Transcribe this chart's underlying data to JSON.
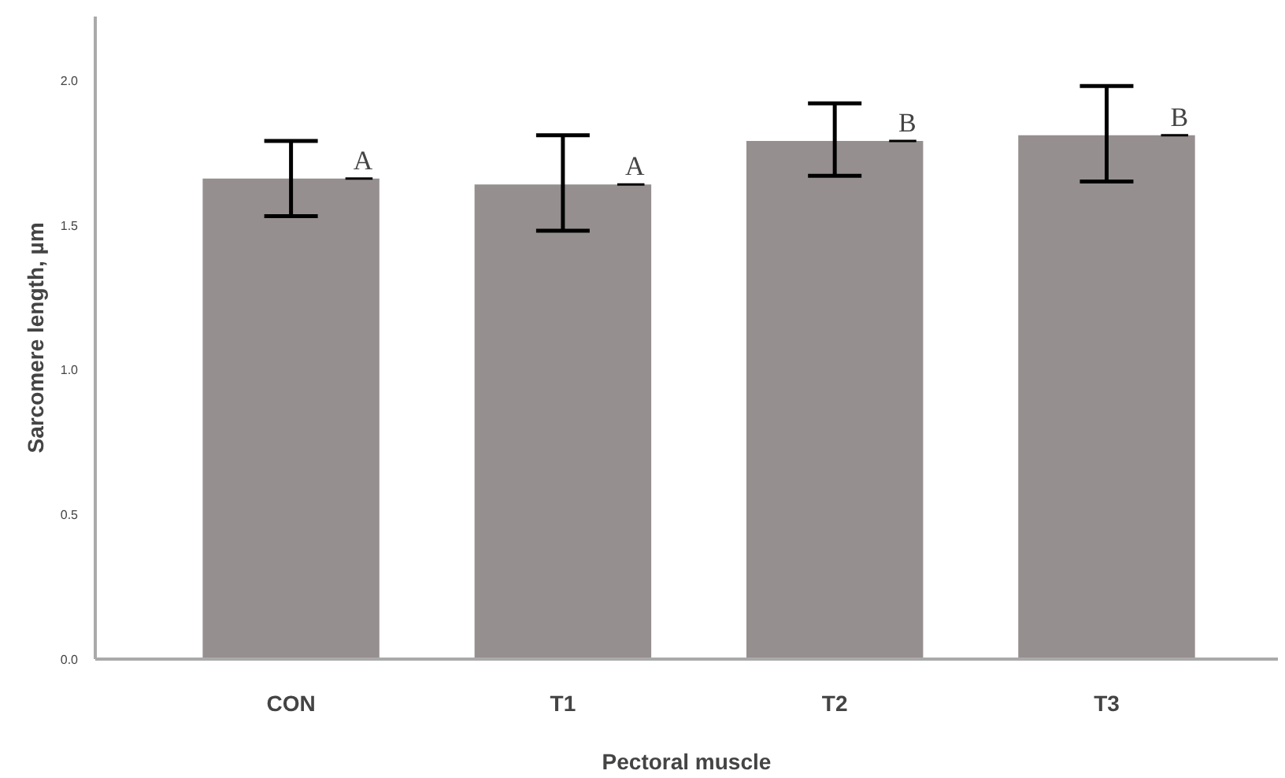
{
  "chart_data": {
    "type": "bar",
    "xlabel": "Pectoral muscle",
    "ylabel": "Sarcomere length, µm",
    "categories": [
      "CON",
      "T1",
      "T2",
      "T3"
    ],
    "values": [
      1.66,
      1.64,
      1.79,
      1.81
    ],
    "errors": [
      [
        1.53,
        1.79
      ],
      [
        1.48,
        1.81
      ],
      [
        1.67,
        1.92
      ],
      [
        1.65,
        1.98
      ]
    ],
    "color": "#968f8f",
    "ylim": [
      0,
      2.22
    ],
    "yticks": [
      {
        "value": 0,
        "label": "0.0"
      },
      {
        "value": 0.5,
        "label": "0.5"
      },
      {
        "value": 1,
        "label": "1.0"
      },
      {
        "value": 1.5,
        "label": "1.5"
      },
      {
        "value": 2,
        "label": "2.0"
      }
    ],
    "annotations": [
      {
        "text": "A",
        "x": "CON",
        "y": 1.66
      },
      {
        "text": "A",
        "x": "T1",
        "y": 1.64
      },
      {
        "text": "B",
        "x": "T2",
        "y": 1.79
      },
      {
        "text": "B",
        "x": "T3",
        "y": 1.81
      }
    ],
    "grid": false
  }
}
